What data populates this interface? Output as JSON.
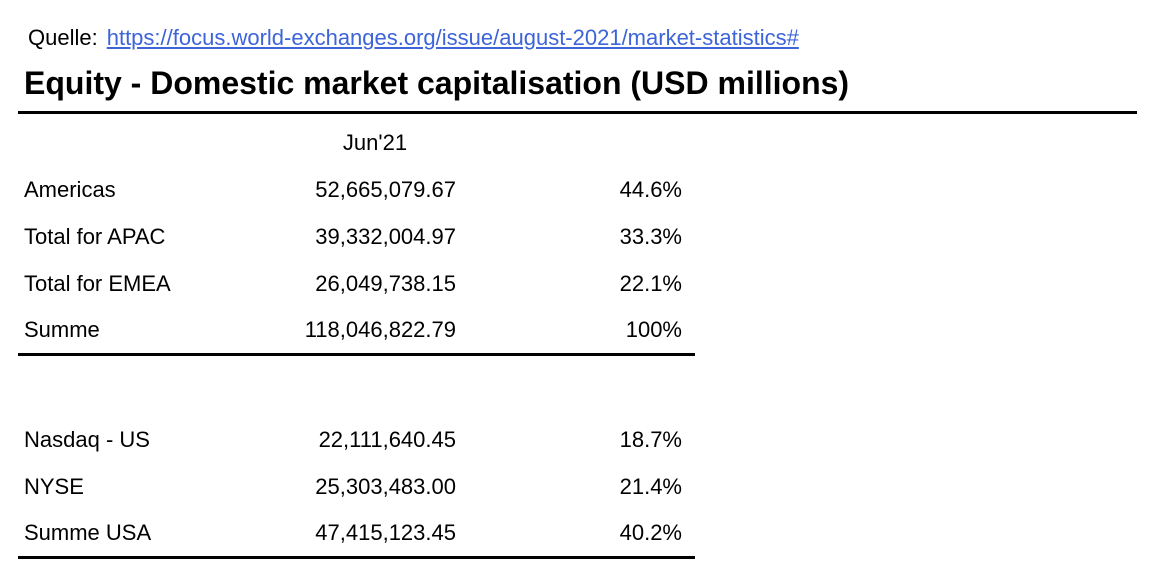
{
  "source": {
    "label": "Quelle:",
    "link_text": "https://focus.world-exchanges.org/issue/august-2021/market-statistics#"
  },
  "title": "Equity - Domestic market capitalisation (USD millions)",
  "table": {
    "period_header": "Jun'21",
    "regions": [
      {
        "label": "Americas",
        "value": "52,665,079.67",
        "share": "44.6%"
      },
      {
        "label": "Total for APAC",
        "value": "39,332,004.97",
        "share": "33.3%"
      },
      {
        "label": "Total for EMEA",
        "value": "26,049,738.15",
        "share": "22.1%"
      },
      {
        "label": "Summe",
        "value": "118,046,822.79",
        "share": "100%"
      }
    ],
    "usa": [
      {
        "label": "Nasdaq - US",
        "value": "22,111,640.45",
        "share": "18.7%"
      },
      {
        "label": "NYSE",
        "value": "25,303,483.00",
        "share": "21.4%"
      },
      {
        "label": "Summe USA",
        "value": "47,415,123.45",
        "share": "40.2%"
      }
    ]
  },
  "colors": {
    "link": "#3d64d8",
    "text": "#000000",
    "rule": "#000000",
    "background": "#ffffff"
  }
}
